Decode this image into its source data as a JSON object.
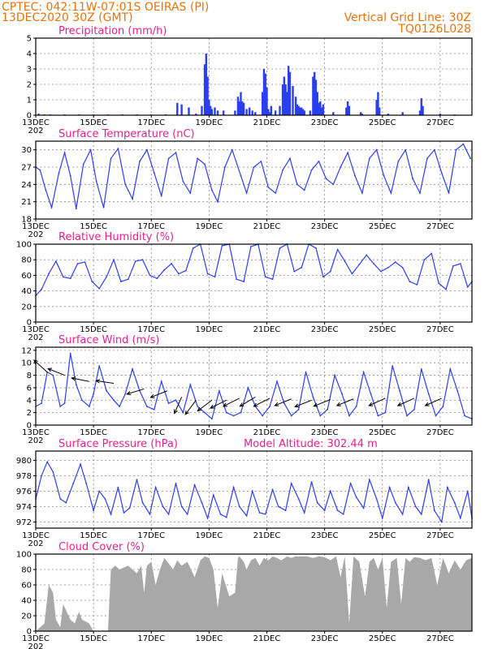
{
  "header": {
    "line1": "CPTEC:   042:11W-07:01S   OEIRAS (PI)",
    "line2": "13DEC2020 30Z (GMT)",
    "right1": "Vertical Grid Line: 30Z",
    "right2": "TQ0126L028"
  },
  "colors": {
    "header": "#e8730c",
    "title": "#e8208c",
    "series": "#2a3ff0",
    "cloud": "#a8a8a8",
    "grid": "#888888"
  },
  "x_axis": {
    "start_day": 13,
    "end_day": 28.1,
    "tick_labels": [
      "13DEC",
      "15DEC",
      "17DEC",
      "19DEC",
      "21DEC",
      "23DEC",
      "25DEC",
      "27DEC"
    ],
    "tick_days": [
      13,
      15,
      17,
      19,
      21,
      23,
      25,
      27
    ],
    "year_fragment": "202"
  },
  "chart_data": [
    {
      "type": "bar",
      "title": "Precipitation (mm/h)",
      "ylim": [
        0,
        5
      ],
      "yticks": [
        0,
        1,
        2,
        3,
        4,
        5
      ],
      "color": "#2a3ff0",
      "x": [
        13.1,
        13.3,
        13.5,
        14.0,
        14.5,
        15.0,
        15.5,
        16.0,
        16.5,
        17.0,
        17.5,
        17.9,
        18.05,
        18.3,
        18.55,
        18.75,
        18.85,
        18.9,
        18.95,
        19.0,
        19.05,
        19.1,
        19.2,
        19.3,
        19.5,
        19.9,
        20.0,
        20.05,
        20.1,
        20.15,
        20.2,
        20.3,
        20.4,
        20.5,
        20.6,
        20.85,
        20.9,
        20.95,
        21.0,
        21.05,
        21.1,
        21.15,
        21.3,
        21.45,
        21.55,
        21.6,
        21.65,
        21.7,
        21.75,
        21.8,
        21.9,
        22.0,
        22.05,
        22.1,
        22.15,
        22.2,
        22.25,
        22.3,
        22.5,
        22.6,
        22.65,
        22.7,
        22.75,
        22.8,
        22.85,
        22.9,
        22.95,
        23.3,
        23.75,
        23.8,
        23.85,
        24.25,
        24.3,
        24.8,
        24.85,
        24.9,
        25.2,
        25.7,
        26.3,
        26.35,
        26.4,
        27.0,
        27.5
      ],
      "values": [
        0.1,
        0.05,
        0.05,
        0.05,
        0.05,
        0.05,
        0.05,
        0.05,
        0.05,
        0.05,
        0.05,
        0.8,
        0.7,
        0.5,
        0.1,
        0.6,
        3.3,
        4.0,
        2.5,
        1.0,
        0.6,
        0.4,
        0.5,
        0.3,
        0.3,
        0.3,
        1.2,
        0.9,
        1.5,
        0.9,
        0.8,
        0.4,
        0.5,
        0.3,
        0.2,
        1.5,
        3.0,
        2.7,
        1.8,
        0.4,
        0.2,
        0.6,
        0.3,
        0.6,
        2.0,
        2.5,
        2.0,
        1.5,
        3.2,
        2.8,
        1.9,
        1.2,
        0.7,
        0.6,
        0.5,
        0.5,
        0.4,
        0.3,
        0.3,
        2.5,
        2.8,
        2.3,
        1.5,
        0.8,
        0.9,
        0.5,
        0.7,
        0.2,
        0.5,
        0.9,
        0.6,
        0.2,
        0.1,
        1.0,
        1.5,
        0.5,
        0.1,
        0.2,
        0.3,
        1.1,
        0.6,
        0.1,
        0.05
      ]
    },
    {
      "type": "line",
      "title": "Surface Temperature (nC)",
      "ylim": [
        18,
        31.5
      ],
      "yticks": [
        18,
        21,
        24,
        27,
        30
      ],
      "color": "#2a3ff0",
      "x": [
        13.0,
        13.15,
        13.35,
        13.55,
        13.8,
        14.0,
        14.2,
        14.4,
        14.65,
        14.9,
        15.1,
        15.35,
        15.6,
        15.85,
        16.1,
        16.35,
        16.6,
        16.85,
        17.1,
        17.35,
        17.6,
        17.85,
        18.1,
        18.35,
        18.6,
        18.85,
        19.1,
        19.3,
        19.55,
        19.8,
        20.1,
        20.3,
        20.55,
        20.8,
        21.05,
        21.3,
        21.55,
        21.8,
        22.05,
        22.3,
        22.55,
        22.8,
        23.05,
        23.3,
        23.55,
        23.8,
        24.05,
        24.3,
        24.55,
        24.8,
        25.05,
        25.3,
        25.55,
        25.8,
        26.05,
        26.3,
        26.55,
        26.8,
        27.05,
        27.3,
        27.55,
        27.8,
        28.05
      ],
      "y": [
        27.0,
        26.5,
        23.0,
        20.0,
        26.0,
        29.5,
        25.5,
        19.8,
        27.5,
        30.0,
        24.5,
        20.0,
        28.5,
        30.2,
        24.0,
        21.5,
        28.0,
        30.0,
        26.0,
        22.0,
        28.5,
        29.5,
        24.5,
        22.5,
        28.5,
        27.5,
        23.0,
        21.0,
        27.0,
        30.0,
        25.5,
        22.5,
        27.0,
        28.0,
        23.5,
        22.5,
        26.5,
        28.5,
        24.0,
        23.0,
        26.5,
        28.0,
        25.0,
        24.0,
        27.0,
        29.5,
        25.5,
        22.5,
        28.5,
        30.0,
        25.5,
        22.5,
        28.0,
        30.0,
        25.0,
        22.5,
        28.5,
        30.0,
        26.0,
        22.5,
        30.0,
        31.0,
        28.5
      ]
    },
    {
      "type": "line",
      "title": "Relative Humidity (%)",
      "ylim": [
        0,
        100
      ],
      "yticks": [
        0,
        20,
        40,
        60,
        80,
        100
      ],
      "color": "#2a3ff0",
      "x": [
        13.0,
        13.2,
        13.45,
        13.7,
        13.95,
        14.2,
        14.45,
        14.7,
        14.95,
        15.2,
        15.45,
        15.7,
        15.95,
        16.2,
        16.45,
        16.7,
        16.95,
        17.2,
        17.45,
        17.7,
        17.95,
        18.2,
        18.45,
        18.7,
        18.95,
        19.2,
        19.45,
        19.7,
        19.95,
        20.2,
        20.45,
        20.7,
        20.95,
        21.2,
        21.45,
        21.7,
        21.95,
        22.2,
        22.45,
        22.7,
        22.95,
        23.2,
        23.45,
        23.7,
        23.95,
        24.2,
        24.45,
        24.7,
        24.95,
        25.2,
        25.45,
        25.7,
        25.95,
        26.2,
        26.45,
        26.7,
        26.95,
        27.2,
        27.45,
        27.7,
        27.95,
        28.1
      ],
      "y": [
        34,
        42,
        62,
        78,
        58,
        56,
        75,
        77,
        52,
        43,
        58,
        80,
        52,
        55,
        78,
        80,
        60,
        56,
        67,
        75,
        62,
        66,
        95,
        100,
        62,
        58,
        98,
        100,
        55,
        52,
        97,
        100,
        58,
        55,
        95,
        100,
        65,
        70,
        100,
        95,
        58,
        65,
        93,
        78,
        62,
        74,
        86,
        75,
        65,
        70,
        77,
        70,
        52,
        48,
        80,
        88,
        50,
        42,
        72,
        75,
        45,
        52
      ]
    },
    {
      "type": "line",
      "title": "Surface Wind (m/s)",
      "ylim": [
        0,
        12.5
      ],
      "yticks": [
        0,
        2,
        4,
        6,
        8,
        10,
        12
      ],
      "color": "#2a3ff0",
      "x": [
        13.0,
        13.2,
        13.4,
        13.6,
        13.85,
        14.0,
        14.2,
        14.4,
        14.6,
        14.85,
        15.0,
        15.2,
        15.45,
        15.7,
        15.9,
        16.1,
        16.35,
        16.6,
        16.85,
        17.1,
        17.35,
        17.6,
        17.85,
        18.1,
        18.35,
        18.6,
        18.85,
        19.1,
        19.35,
        19.6,
        19.85,
        20.1,
        20.35,
        20.6,
        20.85,
        21.1,
        21.35,
        21.6,
        21.85,
        22.1,
        22.35,
        22.6,
        22.85,
        23.1,
        23.35,
        23.6,
        23.85,
        24.1,
        24.35,
        24.6,
        24.85,
        25.1,
        25.35,
        25.6,
        25.85,
        26.1,
        26.35,
        26.6,
        26.85,
        27.1,
        27.35,
        27.6,
        27.85,
        28.1
      ],
      "y": [
        3.0,
        3.5,
        8.5,
        8.0,
        3.0,
        3.5,
        11.5,
        6.5,
        4.0,
        3.0,
        5.0,
        9.5,
        5.5,
        4.0,
        3.0,
        5.0,
        9.0,
        5.5,
        3.0,
        2.5,
        7.0,
        3.5,
        4.0,
        2.0,
        6.5,
        3.0,
        2.0,
        1.0,
        5.5,
        2.0,
        1.5,
        2.0,
        6.0,
        3.0,
        1.5,
        3.0,
        7.0,
        3.5,
        1.5,
        2.5,
        8.5,
        4.5,
        1.5,
        2.5,
        8.0,
        5.0,
        1.5,
        3.0,
        8.5,
        5.0,
        1.5,
        2.0,
        9.5,
        5.5,
        1.5,
        2.5,
        9.0,
        5.0,
        1.5,
        3.0,
        9.0,
        5.5,
        1.5,
        1.0
      ],
      "barbs": [
        {
          "x": 13.4,
          "y": 8.5,
          "u": -1,
          "v": 0.9
        },
        {
          "x": 14.0,
          "y": 8.0,
          "u": -1,
          "v": 0.4
        },
        {
          "x": 14.85,
          "y": 7.0,
          "u": -1,
          "v": 0.2
        },
        {
          "x": 15.7,
          "y": 6.7,
          "u": -1,
          "v": 0.15
        },
        {
          "x": 16.75,
          "y": 5.8,
          "u": -1,
          "v": -0.3
        },
        {
          "x": 17.55,
          "y": 5.5,
          "u": -1,
          "v": -0.4
        },
        {
          "x": 18.05,
          "y": 4.5,
          "u": -0.4,
          "v": -0.9
        },
        {
          "x": 18.55,
          "y": 4.0,
          "u": -0.6,
          "v": -0.8
        },
        {
          "x": 19.1,
          "y": 4.0,
          "u": -0.8,
          "v": -0.6
        },
        {
          "x": 19.6,
          "y": 4.0,
          "u": -1,
          "v": -0.5
        },
        {
          "x": 20.05,
          "y": 4.3,
          "u": -1,
          "v": -0.5
        },
        {
          "x": 20.6,
          "y": 4.5,
          "u": -1,
          "v": -0.6
        },
        {
          "x": 21.1,
          "y": 4.3,
          "u": -1,
          "v": -0.5
        },
        {
          "x": 21.85,
          "y": 4.2,
          "u": -1,
          "v": -0.4
        },
        {
          "x": 22.55,
          "y": 4.0,
          "u": -1,
          "v": -0.4
        },
        {
          "x": 23.2,
          "y": 4.1,
          "u": -1,
          "v": -0.4
        },
        {
          "x": 24.0,
          "y": 4.2,
          "u": -1,
          "v": -0.4
        },
        {
          "x": 25.1,
          "y": 4.3,
          "u": -1,
          "v": -0.45
        },
        {
          "x": 26.1,
          "y": 4.3,
          "u": -1,
          "v": -0.45
        },
        {
          "x": 27.05,
          "y": 4.3,
          "u": -1,
          "v": -0.45
        }
      ]
    },
    {
      "type": "line",
      "title": "Surface Pressure (hPa)",
      "subtitle": "Model Altitude: 302.44 m",
      "ylim": [
        971.2,
        981.2
      ],
      "yticks": [
        972,
        974,
        976,
        978,
        980
      ],
      "color": "#2a3ff0",
      "x": [
        13.0,
        13.2,
        13.4,
        13.6,
        13.85,
        14.05,
        14.3,
        14.55,
        14.75,
        15.0,
        15.2,
        15.4,
        15.6,
        15.85,
        16.05,
        16.25,
        16.5,
        16.7,
        16.95,
        17.15,
        17.4,
        17.6,
        17.85,
        18.05,
        18.25,
        18.5,
        18.75,
        18.95,
        19.15,
        19.4,
        19.6,
        19.85,
        20.05,
        20.3,
        20.5,
        20.75,
        20.95,
        21.2,
        21.4,
        21.65,
        21.85,
        22.1,
        22.3,
        22.55,
        22.75,
        23.0,
        23.2,
        23.45,
        23.65,
        23.9,
        24.1,
        24.35,
        24.55,
        24.8,
        25.0,
        25.25,
        25.45,
        25.7,
        25.9,
        26.15,
        26.35,
        26.6,
        26.8,
        27.05,
        27.25,
        27.5,
        27.7,
        27.95,
        28.1
      ],
      "y": [
        975.0,
        978.0,
        979.8,
        978.5,
        975.0,
        974.5,
        977.0,
        979.5,
        977.0,
        973.5,
        976.0,
        975.0,
        973.0,
        976.5,
        973.2,
        973.8,
        977.5,
        974.5,
        973.0,
        976.5,
        974.0,
        973.0,
        977.0,
        974.0,
        973.0,
        976.8,
        974.5,
        972.5,
        975.5,
        973.0,
        972.6,
        976.5,
        974.0,
        972.8,
        976.0,
        973.2,
        973.0,
        976.2,
        974.0,
        973.5,
        977.0,
        975.0,
        973.2,
        977.2,
        974.5,
        973.5,
        976.0,
        973.5,
        973.0,
        977.0,
        975.2,
        973.8,
        977.5,
        975.0,
        972.5,
        976.5,
        974.5,
        973.0,
        976.5,
        974.0,
        973.0,
        977.5,
        973.5,
        972.0,
        976.5,
        974.5,
        972.5,
        976.0,
        972.5
      ]
    },
    {
      "type": "area",
      "title": "Cloud Cover (%)",
      "ylim": [
        0,
        100
      ],
      "yticks": [
        0,
        20,
        40,
        60,
        80,
        100
      ],
      "color": "#a8a8a8",
      "x": [
        13.0,
        13.3,
        13.45,
        13.6,
        13.7,
        13.85,
        13.95,
        14.2,
        14.35,
        14.5,
        14.6,
        14.85,
        15.0,
        15.5,
        15.6,
        15.75,
        15.9,
        16.2,
        16.5,
        16.65,
        16.75,
        16.85,
        17.0,
        17.15,
        17.3,
        17.45,
        17.6,
        17.75,
        17.9,
        18.05,
        18.25,
        18.5,
        18.7,
        18.85,
        19.0,
        19.15,
        19.3,
        19.45,
        19.7,
        19.9,
        20.0,
        20.05,
        20.2,
        20.3,
        20.45,
        20.6,
        20.75,
        20.9,
        21.05,
        21.2,
        21.35,
        21.5,
        21.7,
        21.85,
        22.0,
        22.2,
        22.4,
        22.6,
        22.8,
        23.0,
        23.2,
        23.4,
        23.55,
        23.7,
        23.85,
        24.0,
        24.2,
        24.4,
        24.55,
        24.7,
        24.85,
        25.0,
        25.15,
        25.3,
        25.5,
        25.65,
        25.8,
        25.95,
        26.1,
        26.3,
        26.5,
        26.7,
        26.9,
        27.1,
        27.3,
        27.5,
        27.7,
        27.9,
        28.1
      ],
      "y": [
        0,
        10,
        60,
        50,
        15,
        5,
        35,
        15,
        10,
        25,
        15,
        10,
        0,
        0,
        80,
        85,
        80,
        85,
        75,
        85,
        50,
        85,
        90,
        60,
        80,
        95,
        88,
        80,
        92,
        85,
        90,
        70,
        92,
        97,
        95,
        80,
        30,
        75,
        45,
        50,
        95,
        97,
        90,
        80,
        92,
        95,
        85,
        95,
        92,
        97,
        95,
        92,
        97,
        95,
        97,
        97,
        97,
        95,
        97,
        96,
        92,
        97,
        70,
        97,
        10,
        97,
        90,
        45,
        90,
        95,
        80,
        95,
        30,
        90,
        95,
        35,
        95,
        90,
        96,
        95,
        92,
        95,
        60,
        95,
        75,
        92,
        80,
        92,
        95
      ]
    }
  ]
}
